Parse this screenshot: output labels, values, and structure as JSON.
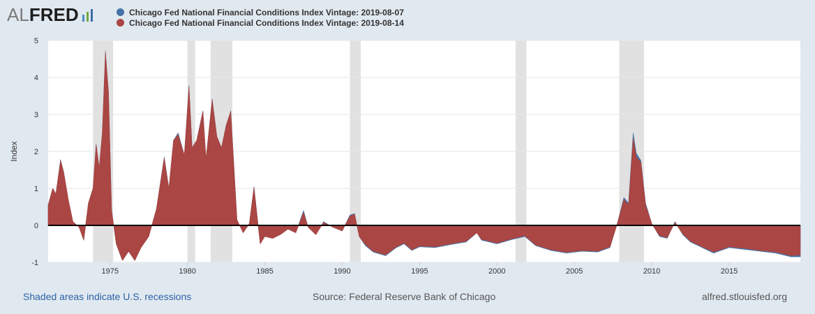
{
  "logo": {
    "al": "AL",
    "fred": "FRED",
    "colors": [
      "#4d8ec1",
      "#76a840",
      "#3d6ea8"
    ]
  },
  "legend": [
    {
      "label": "Chicago Fed National Financial Conditions Index Vintage: 2019-08-07",
      "color": "#4572a7"
    },
    {
      "label": "Chicago Fed National Financial Conditions Index Vintage: 2019-08-14",
      "color": "#aa4643"
    }
  ],
  "footer": {
    "recessions": "Shaded areas indicate U.S. recessions",
    "source": "Source: Federal Reserve Bank of Chicago",
    "site": "alfred.stlouisfed.org"
  },
  "chart_data": {
    "type": "area",
    "title": "",
    "xlabel": "",
    "ylabel": "Index",
    "xlim": [
      1971.0,
      2019.6
    ],
    "ylim": [
      -1,
      5
    ],
    "y_ticks": [
      -1,
      0,
      1,
      2,
      3,
      4,
      5
    ],
    "x_ticks": [
      1975,
      1980,
      1985,
      1990,
      1995,
      2000,
      2005,
      2010,
      2015
    ],
    "grid": true,
    "recessions": [
      [
        1973.9,
        1975.2
      ],
      [
        1980.0,
        1980.5
      ],
      [
        1981.5,
        1982.9
      ],
      [
        1990.5,
        1991.2
      ],
      [
        2001.2,
        2001.9
      ],
      [
        2007.9,
        2009.5
      ]
    ],
    "series": [
      {
        "name": "Chicago Fed National Financial Conditions Index Vintage: 2019-08-07",
        "color": "#4572a7",
        "x": [
          1971.0,
          1971.3,
          1971.5,
          1971.8,
          1972.0,
          1972.3,
          1972.6,
          1973.0,
          1973.3,
          1973.6,
          1973.9,
          1974.1,
          1974.3,
          1974.5,
          1974.7,
          1974.9,
          1975.1,
          1975.4,
          1975.8,
          1976.2,
          1976.6,
          1977.0,
          1977.5,
          1978.0,
          1978.5,
          1978.8,
          1979.1,
          1979.4,
          1979.8,
          1980.1,
          1980.3,
          1980.6,
          1981.0,
          1981.2,
          1981.6,
          1981.9,
          1982.2,
          1982.5,
          1982.8,
          1983.2,
          1983.6,
          1984.0,
          1984.3,
          1984.7,
          1985.0,
          1985.5,
          1986.0,
          1986.5,
          1987.0,
          1987.5,
          1987.8,
          1988.3,
          1988.8,
          1989.4,
          1990.0,
          1990.5,
          1990.8,
          1991.1,
          1991.5,
          1992.0,
          1992.8,
          1993.5,
          1994.0,
          1994.5,
          1995.0,
          1996.0,
          1997.0,
          1998.0,
          1998.7,
          1999.0,
          2000.0,
          2001.0,
          2001.8,
          2002.5,
          2003.5,
          2004.5,
          2005.5,
          2006.5,
          2007.3,
          2007.8,
          2008.2,
          2008.5,
          2008.8,
          2009.0,
          2009.3,
          2009.6,
          2010.0,
          2010.5,
          2011.0,
          2011.5,
          2012.0,
          2012.5,
          2013.0,
          2014.0,
          2015.0,
          2016.0,
          2017.0,
          2018.0,
          2019.0,
          2019.6
        ],
        "values": [
          0.55,
          1.0,
          0.85,
          1.78,
          1.45,
          0.7,
          0.1,
          -0.05,
          -0.4,
          0.6,
          1.0,
          2.2,
          1.55,
          2.5,
          4.72,
          3.6,
          0.4,
          -0.5,
          -0.95,
          -0.7,
          -0.95,
          -0.6,
          -0.3,
          0.45,
          1.85,
          1.0,
          2.3,
          2.5,
          1.9,
          3.78,
          2.1,
          2.3,
          3.1,
          1.8,
          3.42,
          2.4,
          2.1,
          2.7,
          3.1,
          0.15,
          -0.2,
          0.05,
          1.05,
          -0.5,
          -0.3,
          -0.35,
          -0.25,
          -0.1,
          -0.2,
          0.4,
          -0.05,
          -0.25,
          0.1,
          -0.05,
          -0.15,
          0.28,
          0.32,
          -0.3,
          -0.55,
          -0.72,
          -0.82,
          -0.6,
          -0.5,
          -0.68,
          -0.58,
          -0.6,
          -0.52,
          -0.45,
          -0.2,
          -0.4,
          -0.5,
          -0.38,
          -0.3,
          -0.55,
          -0.68,
          -0.75,
          -0.7,
          -0.72,
          -0.6,
          0.1,
          0.75,
          0.6,
          2.5,
          1.95,
          1.75,
          0.6,
          0.05,
          -0.3,
          -0.35,
          0.1,
          -0.25,
          -0.45,
          -0.55,
          -0.75,
          -0.6,
          -0.65,
          -0.7,
          -0.75,
          -0.85,
          -0.85
        ]
      },
      {
        "name": "Chicago Fed National Financial Conditions Index Vintage: 2019-08-14",
        "color": "#aa4643",
        "x": [
          1971.0,
          1971.3,
          1971.5,
          1971.8,
          1972.0,
          1972.3,
          1972.6,
          1973.0,
          1973.3,
          1973.6,
          1973.9,
          1974.1,
          1974.3,
          1974.5,
          1974.7,
          1974.9,
          1975.1,
          1975.4,
          1975.8,
          1976.2,
          1976.6,
          1977.0,
          1977.5,
          1978.0,
          1978.5,
          1978.8,
          1979.1,
          1979.4,
          1979.8,
          1980.1,
          1980.3,
          1980.6,
          1981.0,
          1981.2,
          1981.6,
          1981.9,
          1982.2,
          1982.5,
          1982.8,
          1983.2,
          1983.6,
          1984.0,
          1984.3,
          1984.7,
          1985.0,
          1985.5,
          1986.0,
          1986.5,
          1987.0,
          1987.5,
          1987.8,
          1988.3,
          1988.8,
          1989.4,
          1990.0,
          1990.5,
          1990.8,
          1991.1,
          1991.5,
          1992.0,
          1992.8,
          1993.5,
          1994.0,
          1994.5,
          1995.0,
          1996.0,
          1997.0,
          1998.0,
          1998.7,
          1999.0,
          2000.0,
          2001.0,
          2001.8,
          2002.5,
          2003.5,
          2004.5,
          2005.5,
          2006.5,
          2007.3,
          2007.8,
          2008.2,
          2008.5,
          2008.8,
          2009.0,
          2009.3,
          2009.6,
          2010.0,
          2010.5,
          2011.0,
          2011.5,
          2012.0,
          2012.5,
          2013.0,
          2014.0,
          2015.0,
          2016.0,
          2017.0,
          2018.0,
          2019.0,
          2019.6
        ],
        "values": [
          0.55,
          1.0,
          0.85,
          1.75,
          1.45,
          0.7,
          0.1,
          -0.05,
          -0.4,
          0.6,
          1.0,
          2.18,
          1.55,
          2.5,
          4.68,
          3.6,
          0.4,
          -0.5,
          -0.95,
          -0.7,
          -0.95,
          -0.6,
          -0.3,
          0.45,
          1.82,
          1.0,
          2.3,
          2.45,
          1.9,
          3.75,
          2.1,
          2.3,
          3.08,
          1.8,
          3.4,
          2.4,
          2.1,
          2.7,
          3.08,
          0.15,
          -0.2,
          0.05,
          1.02,
          -0.5,
          -0.3,
          -0.35,
          -0.25,
          -0.1,
          -0.2,
          0.35,
          -0.05,
          -0.25,
          0.08,
          -0.05,
          -0.15,
          0.25,
          0.3,
          -0.3,
          -0.52,
          -0.7,
          -0.8,
          -0.58,
          -0.48,
          -0.66,
          -0.56,
          -0.58,
          -0.5,
          -0.43,
          -0.2,
          -0.38,
          -0.48,
          -0.36,
          -0.28,
          -0.53,
          -0.66,
          -0.73,
          -0.68,
          -0.7,
          -0.58,
          0.08,
          0.7,
          0.55,
          2.35,
          1.85,
          1.7,
          0.55,
          0.05,
          -0.28,
          -0.33,
          0.08,
          -0.23,
          -0.43,
          -0.53,
          -0.72,
          -0.58,
          -0.62,
          -0.68,
          -0.72,
          -0.82,
          -0.8
        ]
      }
    ]
  }
}
